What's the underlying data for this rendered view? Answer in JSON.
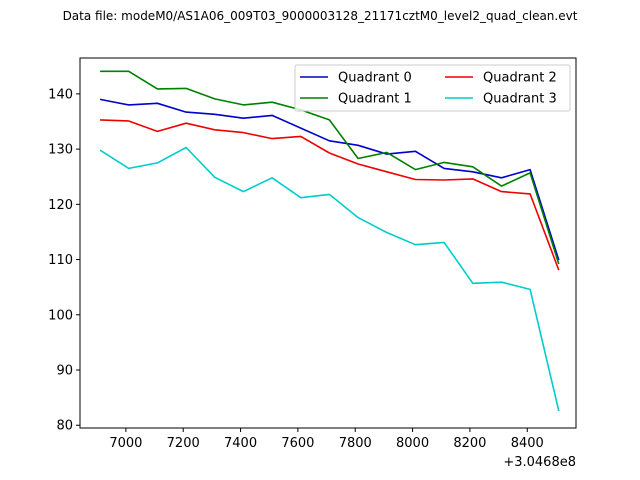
{
  "chart_data": {
    "type": "line",
    "title": "Data file: modeM0/AS1A06_009T03_9000003128_21171cztM0_level2_quad_clean.evt",
    "xlabel": "",
    "ylabel": "",
    "x_offset_label": "+3.0468e8",
    "xlim": [
      6840,
      8570
    ],
    "ylim": [
      79.5,
      146.5
    ],
    "x_ticks": [
      7000,
      7200,
      7400,
      7600,
      7800,
      8000,
      8200,
      8400
    ],
    "y_ticks": [
      80,
      90,
      100,
      110,
      120,
      130,
      140
    ],
    "grid": false,
    "legend_position": "top-right",
    "x": [
      6910,
      7010,
      7110,
      7210,
      7310,
      7410,
      7510,
      7610,
      7710,
      7810,
      7910,
      8010,
      8110,
      8210,
      8310,
      8410,
      8510
    ],
    "series": [
      {
        "name": "Quadrant 0",
        "color": "#0000cc",
        "values": [
          139.0,
          138.0,
          138.3,
          136.7,
          136.3,
          135.6,
          136.1,
          133.8,
          131.5,
          130.7,
          129.1,
          129.6,
          126.5,
          125.9,
          124.8,
          126.3,
          109.9
        ]
      },
      {
        "name": "Quadrant 1",
        "color": "#008000",
        "values": [
          144.1,
          144.1,
          140.9,
          141.0,
          139.1,
          138.0,
          138.5,
          137.1,
          135.3,
          128.3,
          129.4,
          126.3,
          127.6,
          126.8,
          123.3,
          125.7,
          109.2
        ]
      },
      {
        "name": "Quadrant 2",
        "color": "#ee0000",
        "values": [
          135.3,
          135.1,
          133.2,
          134.7,
          133.5,
          133.0,
          131.9,
          132.3,
          129.3,
          127.3,
          125.9,
          124.5,
          124.4,
          124.6,
          122.3,
          121.9,
          108.1
        ]
      },
      {
        "name": "Quadrant 3",
        "color": "#00cccc",
        "values": [
          129.8,
          126.5,
          127.5,
          130.3,
          124.9,
          122.3,
          124.8,
          121.2,
          121.8,
          117.6,
          114.9,
          112.7,
          113.1,
          105.7,
          105.9,
          104.6,
          82.6
        ]
      }
    ]
  }
}
